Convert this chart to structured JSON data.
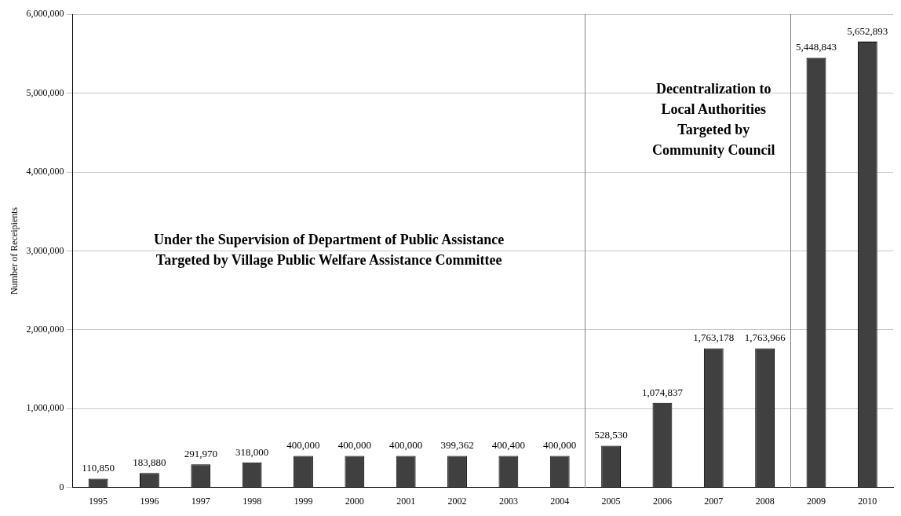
{
  "chart_data": {
    "type": "bar",
    "ylabel": "Number of Receipients",
    "categories": [
      "1995",
      "1996",
      "1997",
      "1998",
      "1999",
      "2000",
      "2001",
      "2002",
      "2003",
      "2004",
      "2005",
      "2006",
      "2007",
      "2008",
      "2009",
      "2010"
    ],
    "values": [
      110850,
      183880,
      291970,
      318000,
      400000,
      400000,
      400000,
      399362,
      400400,
      400000,
      528530,
      1074837,
      1763178,
      1763966,
      5448843,
      5652893
    ],
    "value_labels": [
      "110,850",
      "183,880",
      "291,970",
      "318,000",
      "400,000",
      "400,000",
      "400,000",
      "399,362",
      "400,400",
      "400,000",
      "528,530",
      "1,074,837",
      "1,763,178",
      "1,763,966",
      "5,448,843",
      "5,652,893"
    ],
    "color": "#404040",
    "ylim": [
      0,
      6000000
    ],
    "yticks": [
      {
        "value": 0,
        "label": "0"
      },
      {
        "value": 1000000,
        "label": "1,000,000"
      },
      {
        "value": 2000000,
        "label": "2,000,000"
      },
      {
        "value": 3000000,
        "label": "3,000,000"
      },
      {
        "value": 4000000,
        "label": "4,000,000"
      },
      {
        "value": 5000000,
        "label": "5,000,000"
      },
      {
        "value": 6000000,
        "label": "6,000,000"
      }
    ],
    "grid": "y",
    "annotations": [
      "Under the Supervision of Department of Public Assistance\nTargeted by Village Public Welfare Assistance Committee",
      "Decentralization to\nLocal Authorities\nTargeted by\nCommunity Council"
    ]
  }
}
